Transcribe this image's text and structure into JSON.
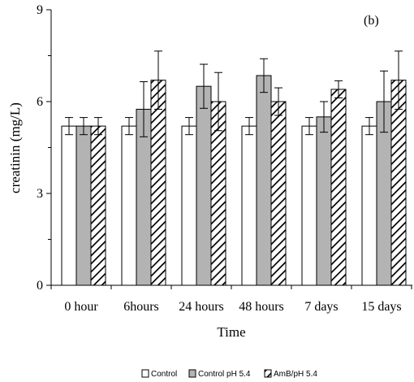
{
  "chart_data": {
    "type": "bar",
    "panel_label": "(b)",
    "xlabel": "Time",
    "ylabel": "creatinin (mg/L)",
    "ylim": [
      0,
      9
    ],
    "yticks": [
      0,
      3,
      6,
      9
    ],
    "categories": [
      "0 hour",
      "6hours",
      "24 hours",
      "48 hours",
      "7 days",
      "15 days"
    ],
    "series": [
      {
        "name": "Control",
        "values": [
          5.2,
          5.2,
          5.2,
          5.2,
          5.2,
          5.2
        ],
        "errors": [
          0.28,
          0.28,
          0.28,
          0.28,
          0.28,
          0.28
        ],
        "style": "white"
      },
      {
        "name": "Control pH 5.4",
        "values": [
          5.2,
          5.75,
          6.5,
          6.85,
          5.5,
          6.0
        ],
        "errors": [
          0.28,
          0.9,
          0.72,
          0.55,
          0.5,
          1.0
        ],
        "style": "gray"
      },
      {
        "name": "AmB/pH 5.4",
        "values": [
          5.2,
          6.7,
          6.0,
          6.0,
          6.4,
          6.7
        ],
        "errors": [
          0.28,
          0.95,
          0.95,
          0.45,
          0.28,
          0.95
        ],
        "style": "hatch"
      }
    ],
    "grid": false,
    "legend_position": "bottom"
  },
  "colors": {
    "gray_fill": "#b3b3b3",
    "bar_stroke": "#000000"
  }
}
